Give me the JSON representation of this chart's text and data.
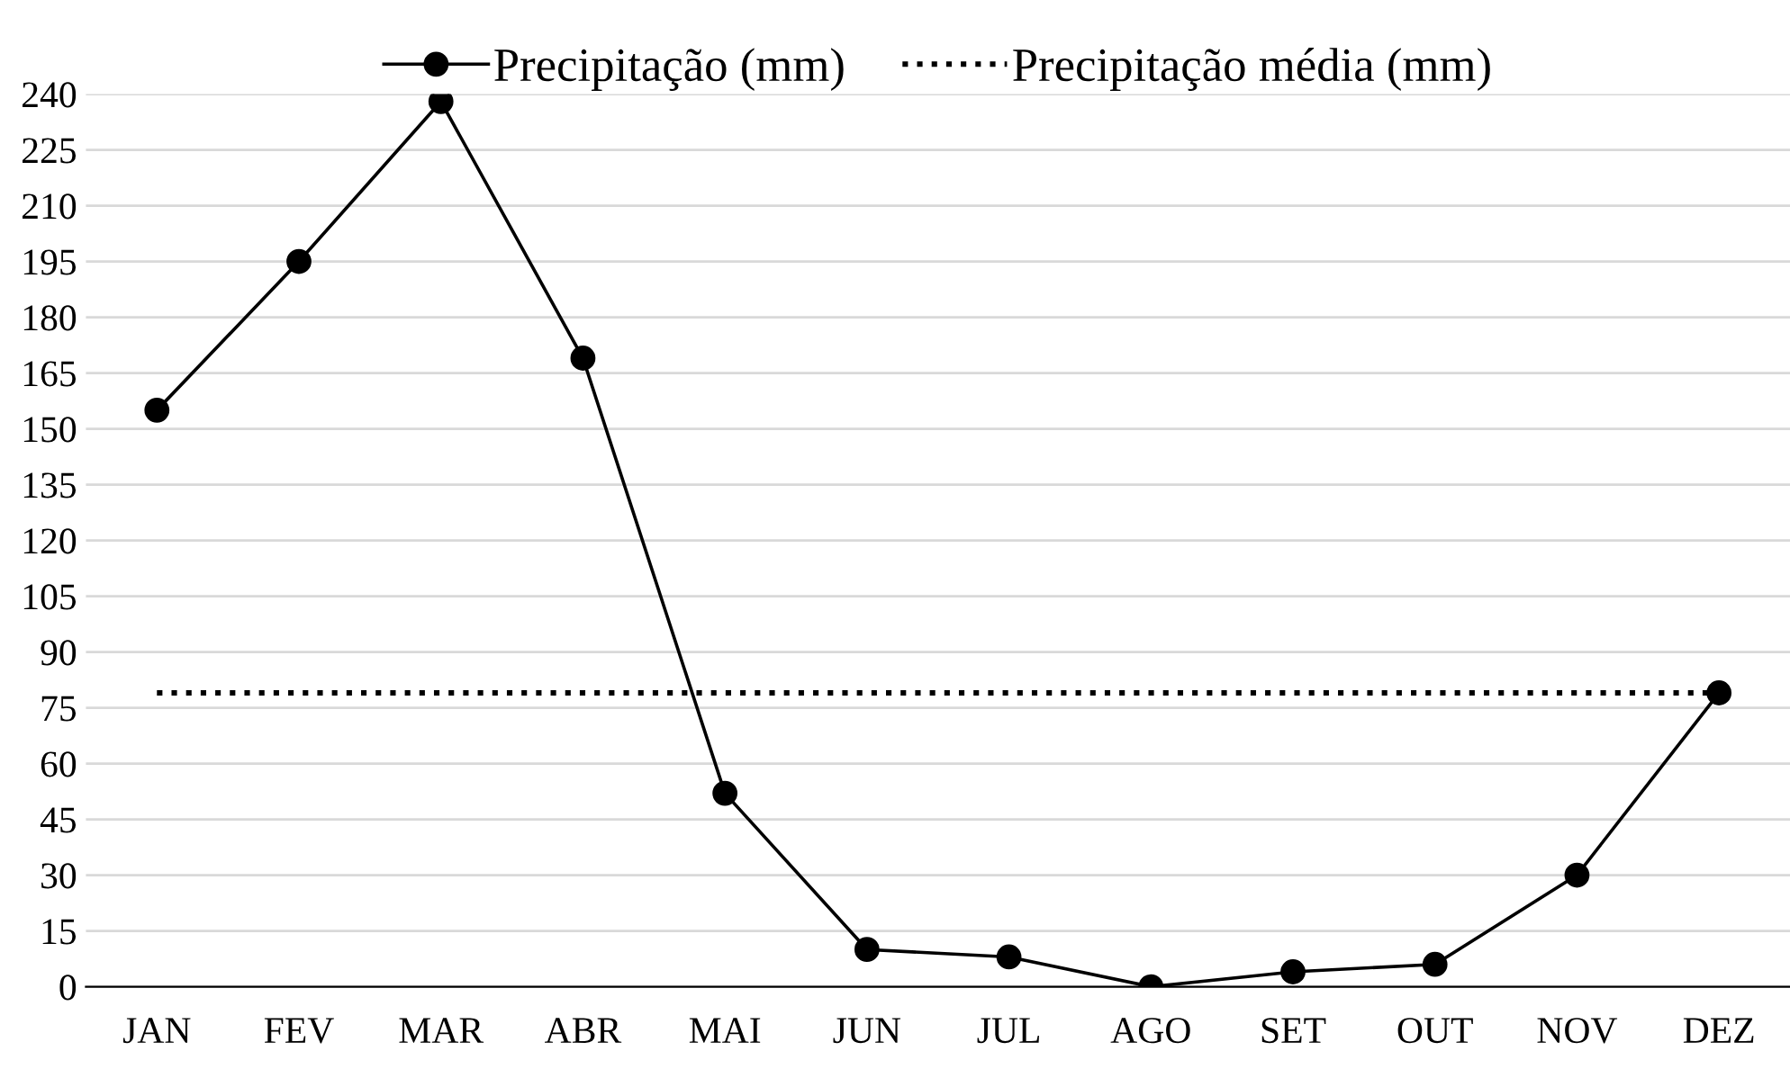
{
  "chart_data": {
    "type": "line",
    "categories": [
      "JAN",
      "FEV",
      "MAR",
      "ABR",
      "MAI",
      "JUN",
      "JUL",
      "AGO",
      "SET",
      "OUT",
      "NOV",
      "DEZ"
    ],
    "series": [
      {
        "name": "Precipitação (mm)",
        "color": "#000000",
        "marker": "circle",
        "line_style": "solid",
        "values": [
          155,
          195,
          238,
          169,
          52,
          10,
          8,
          0,
          4,
          6,
          30,
          79
        ]
      },
      {
        "name": "Precipitação média (mm)",
        "color": "#000000",
        "marker": "none",
        "line_style": "dotted",
        "values": [
          79,
          79,
          79,
          79,
          79,
          79,
          79,
          79,
          79,
          79,
          79,
          79
        ]
      }
    ],
    "ylim": [
      0,
      240
    ],
    "yticks": [
      0,
      15,
      30,
      45,
      60,
      75,
      90,
      105,
      120,
      135,
      150,
      165,
      180,
      195,
      210,
      225,
      240
    ],
    "grid": "y",
    "legend": "top"
  }
}
